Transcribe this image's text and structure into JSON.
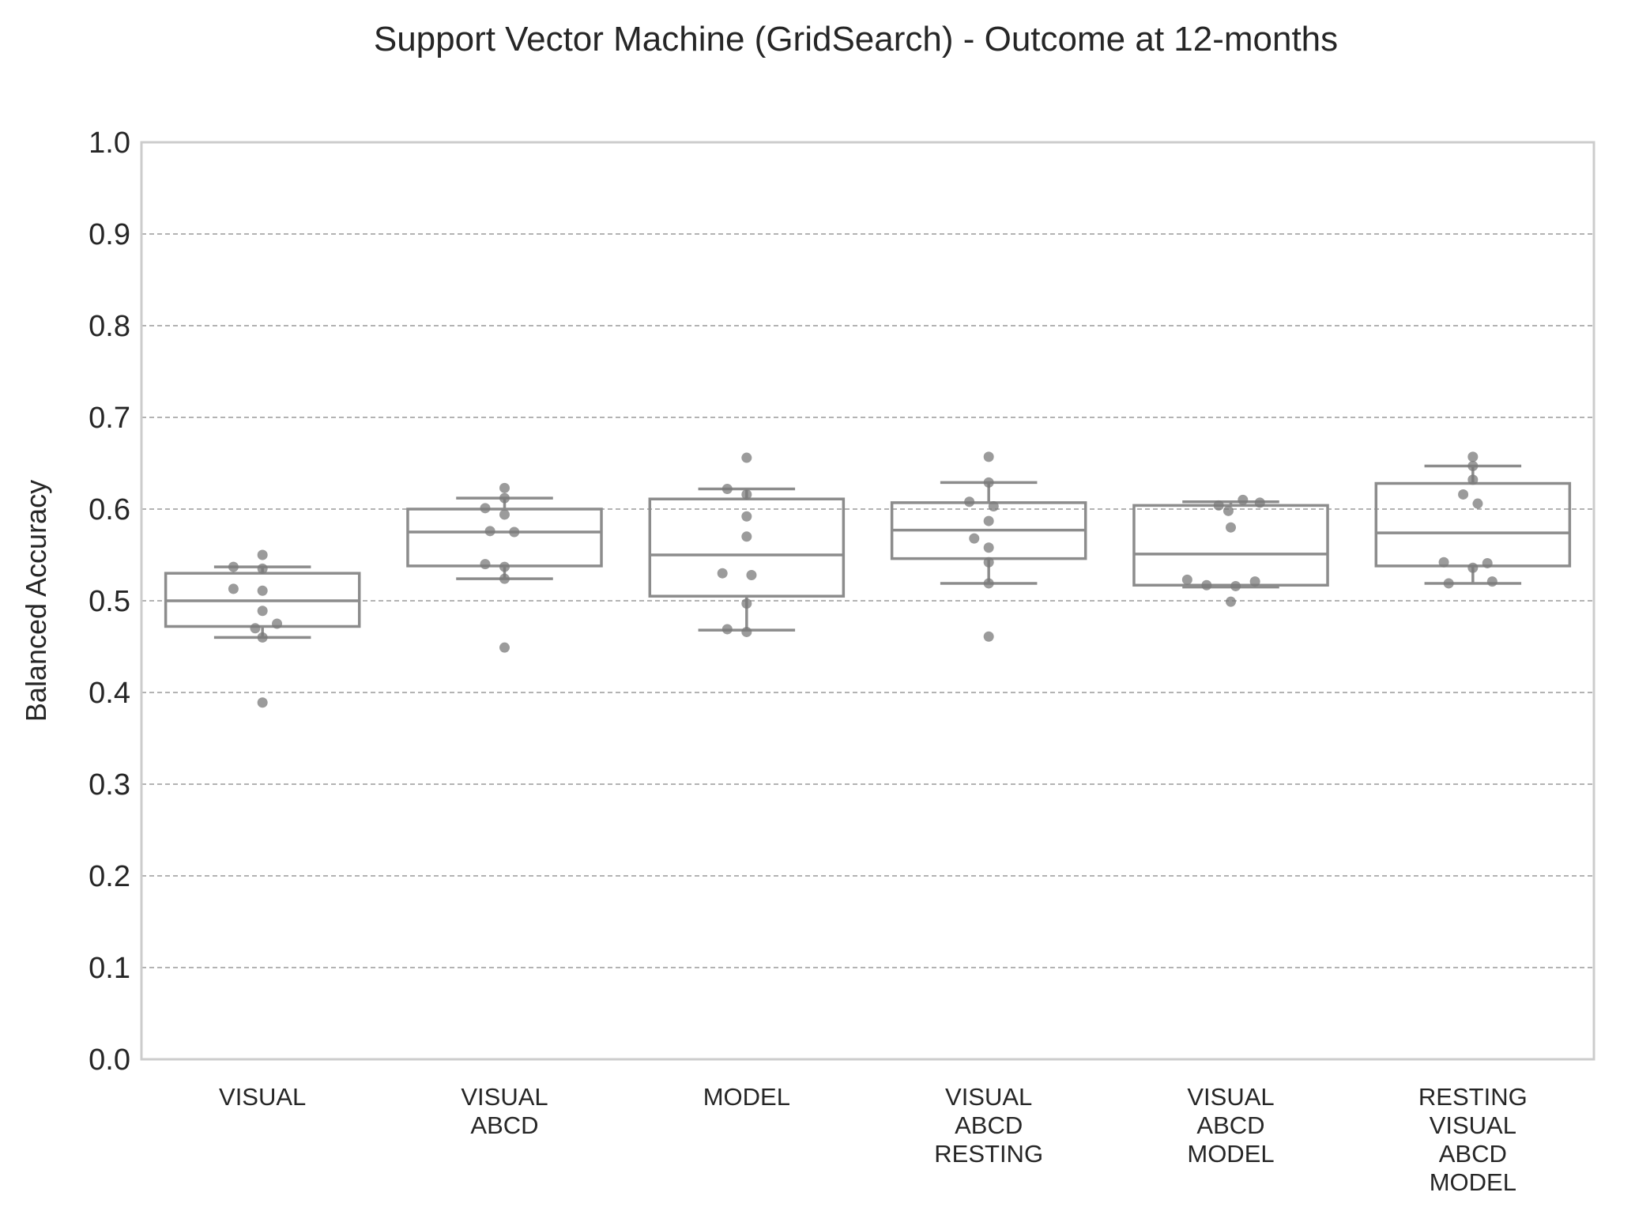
{
  "chart_data": {
    "type": "box",
    "title": "Support Vector Machine (GridSearch) - Outcome at 12-months",
    "xlabel": "",
    "ylabel": "Balanced Accuracy",
    "ylim": [
      0.0,
      1.0
    ],
    "yticks": [
      "0.0",
      "0.1",
      "0.2",
      "0.3",
      "0.4",
      "0.5",
      "0.6",
      "0.7",
      "0.8",
      "0.9",
      "1.0"
    ],
    "grid": "horizontal dashed",
    "colors": {
      "box": "#8c8c8c",
      "points": "#7a7a7a",
      "grid": "#9a9a9a",
      "frame": "#cccccc"
    },
    "categories": [
      {
        "lines": [
          "VISUAL"
        ]
      },
      {
        "lines": [
          "VISUAL",
          "ABCD"
        ]
      },
      {
        "lines": [
          "MODEL"
        ]
      },
      {
        "lines": [
          "VISUAL",
          "ABCD",
          "RESTING"
        ]
      },
      {
        "lines": [
          "VISUAL",
          "ABCD",
          "MODEL"
        ]
      },
      {
        "lines": [
          "RESTING",
          "VISUAL",
          "ABCD",
          "MODEL"
        ]
      }
    ],
    "boxes": [
      {
        "q1": 0.472,
        "median": 0.5,
        "q3": 0.53,
        "whisker_low": 0.46,
        "whisker_high": 0.537
      },
      {
        "q1": 0.538,
        "median": 0.575,
        "q3": 0.6,
        "whisker_low": 0.524,
        "whisker_high": 0.612
      },
      {
        "q1": 0.505,
        "median": 0.55,
        "q3": 0.611,
        "whisker_low": 0.468,
        "whisker_high": 0.622
      },
      {
        "q1": 0.546,
        "median": 0.577,
        "q3": 0.607,
        "whisker_low": 0.519,
        "whisker_high": 0.629
      },
      {
        "q1": 0.517,
        "median": 0.551,
        "q3": 0.604,
        "whisker_low": 0.515,
        "whisker_high": 0.608
      },
      {
        "q1": 0.538,
        "median": 0.574,
        "q3": 0.628,
        "whisker_low": 0.519,
        "whisker_high": 0.647
      }
    ],
    "points": [
      [
        0.55,
        0.537,
        0.535,
        0.513,
        0.511,
        0.489,
        0.475,
        0.47,
        0.46,
        0.389
      ],
      [
        0.623,
        0.612,
        0.601,
        0.594,
        0.576,
        0.575,
        0.54,
        0.537,
        0.524,
        0.449
      ],
      [
        0.656,
        0.622,
        0.616,
        0.592,
        0.57,
        0.53,
        0.528,
        0.497,
        0.469,
        0.466
      ],
      [
        0.657,
        0.629,
        0.608,
        0.603,
        0.587,
        0.568,
        0.558,
        0.542,
        0.519,
        0.461
      ],
      [
        0.61,
        0.607,
        0.604,
        0.598,
        0.58,
        0.523,
        0.521,
        0.517,
        0.516,
        0.499
      ],
      [
        0.657,
        0.647,
        0.632,
        0.616,
        0.606,
        0.542,
        0.541,
        0.536,
        0.521,
        0.519
      ]
    ],
    "point_offsets": [
      [
        0.0,
        -0.12,
        0.0,
        -0.12,
        0.0,
        0.0,
        0.06,
        -0.03,
        0.0,
        0.0
      ],
      [
        0.0,
        0.0,
        -0.08,
        0.0,
        -0.06,
        0.04,
        -0.08,
        0.0,
        0.0,
        0.0
      ],
      [
        0.0,
        -0.08,
        0.0,
        0.0,
        0.0,
        -0.1,
        0.02,
        0.0,
        -0.08,
        0.0
      ],
      [
        0.0,
        0.0,
        -0.08,
        0.02,
        0.0,
        -0.06,
        0.0,
        0.0,
        0.0,
        0.0
      ],
      [
        0.05,
        0.12,
        -0.05,
        -0.01,
        0.0,
        -0.18,
        0.1,
        -0.1,
        0.02,
        0.0
      ],
      [
        0.0,
        0.0,
        0.0,
        -0.04,
        0.02,
        -0.12,
        0.06,
        0.0,
        0.08,
        -0.1
      ]
    ]
  }
}
